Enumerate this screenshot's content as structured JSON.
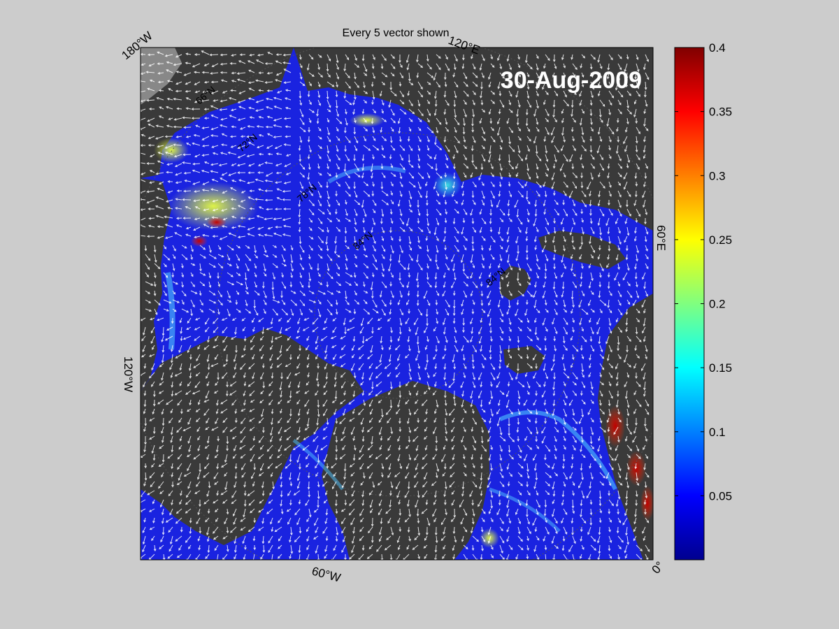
{
  "figure": {
    "subtitle": "Every 5 vector shown",
    "date": "30-Aug-2009",
    "background_color": "#cccccc",
    "land_color": "#3a3a3a",
    "ocean_color": "#1a23e0",
    "vector_color": "#ffffff"
  },
  "map": {
    "projection": "polar stereographic (north)",
    "corner_labels": {
      "top_left": "180°W",
      "top_right": "120°E",
      "right": "60°E",
      "bottom_right": "0°",
      "bottom": "60°W",
      "left": "120°W"
    },
    "latitude_labels": [
      "66°N",
      "72°N",
      "78°N",
      "84°N",
      "84°N"
    ]
  },
  "colorbar": {
    "colormap": "jet",
    "min": 0,
    "max": 0.4,
    "ticks": [
      "0.05",
      "0.1",
      "0.15",
      "0.2",
      "0.25",
      "0.3",
      "0.35",
      "0.4"
    ]
  }
}
